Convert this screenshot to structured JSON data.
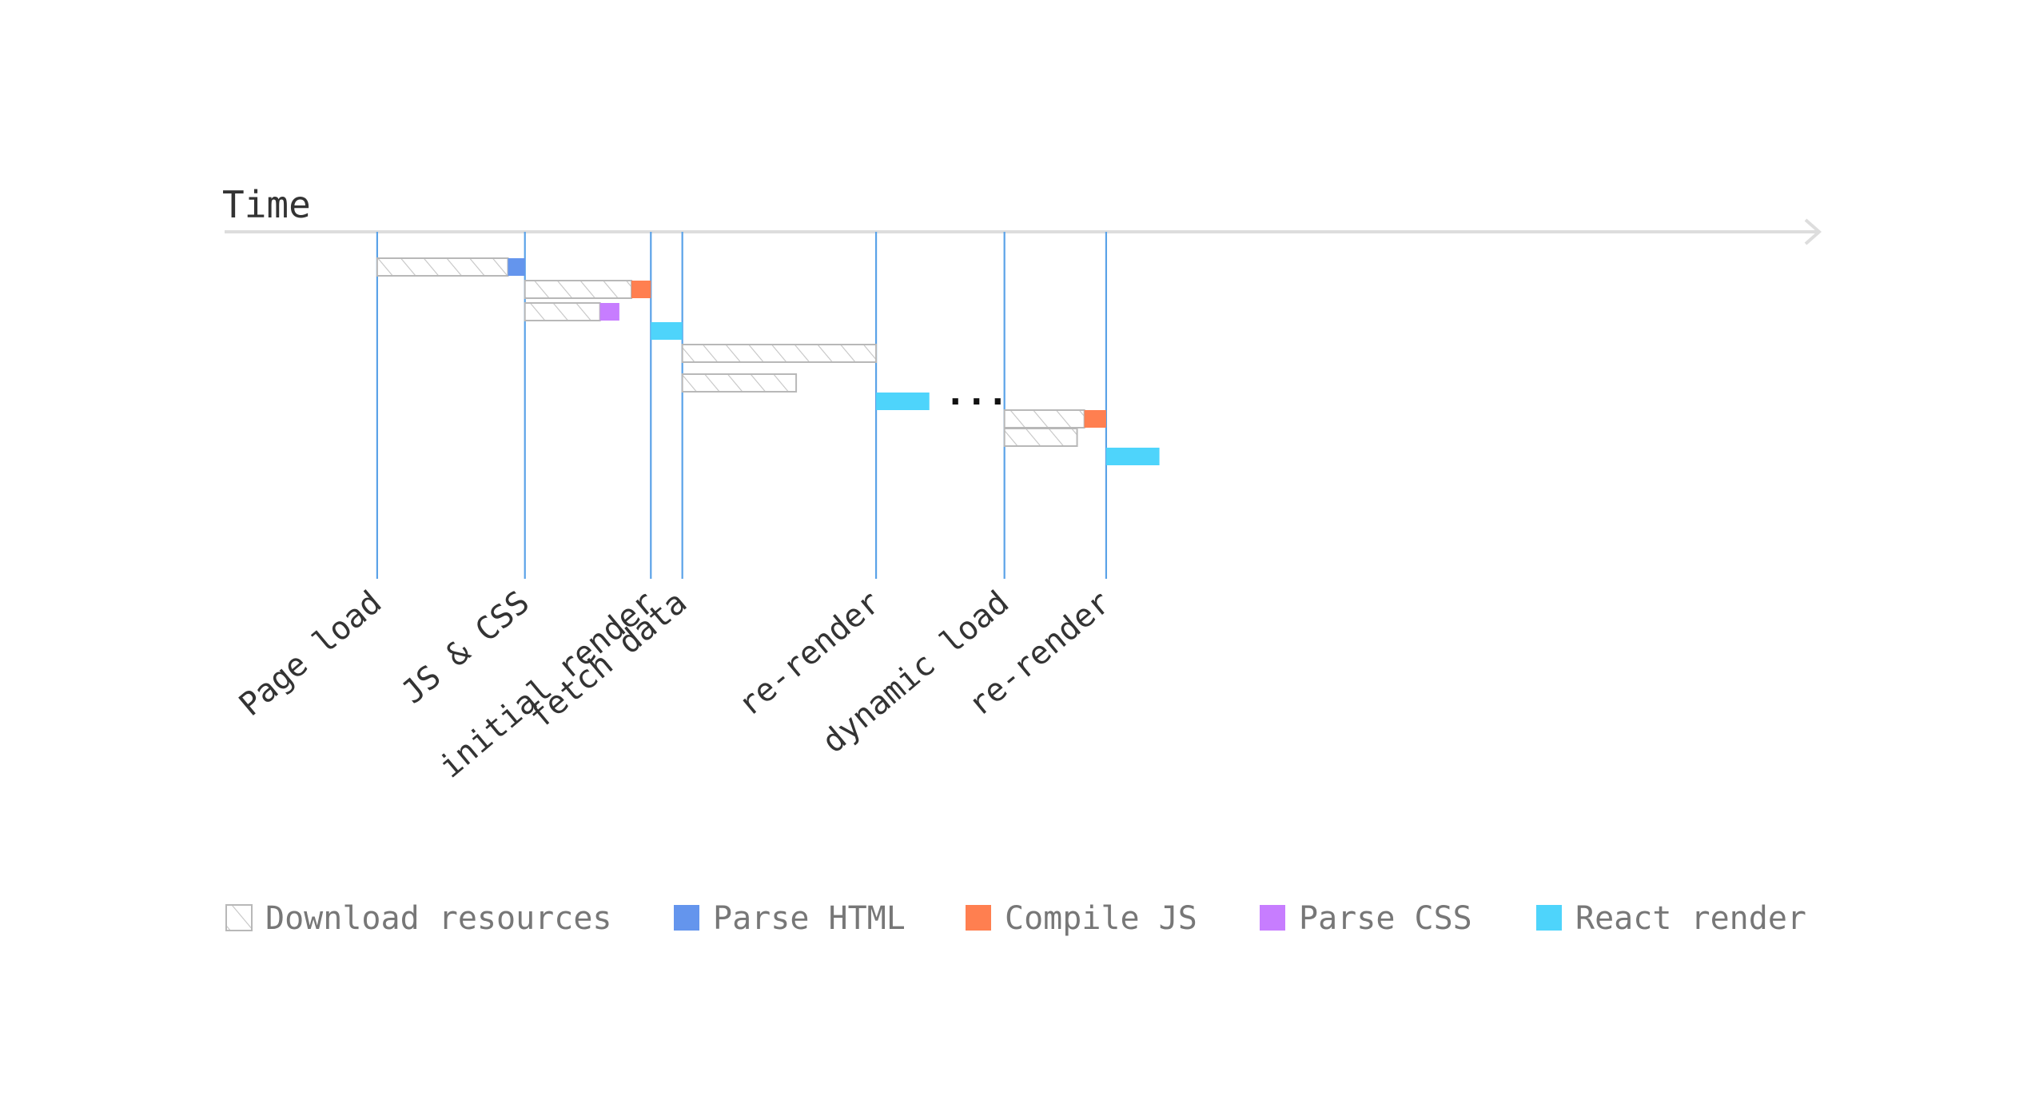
{
  "title": "Time",
  "ellipsis": "...",
  "colors": {
    "download_stroke": "#b8b8b8",
    "download_hatch": "#c4c4c4",
    "parse_html": "#6495ed",
    "compile_js": "#ff7f50",
    "parse_css": "#c77dff",
    "react_render": "#4ed4fb",
    "event_line": "#5aa2e8",
    "axis": "#dddddd"
  },
  "legend": [
    {
      "key": "download",
      "label": "Download resources"
    },
    {
      "key": "parse_html",
      "label": "Parse HTML"
    },
    {
      "key": "compile_js",
      "label": "Compile JS"
    },
    {
      "key": "parse_css",
      "label": "Parse CSS"
    },
    {
      "key": "react_render",
      "label": "React render"
    }
  ],
  "events": [
    {
      "label": "Page load",
      "t": 6.3
    },
    {
      "label": "JS & CSS",
      "t": 12.4
    },
    {
      "label": "initial render",
      "t": 17.6
    },
    {
      "label": "fetch data",
      "t": 18.9
    },
    {
      "label": "re-render",
      "t": 26.9
    },
    {
      "label": "dynamic load",
      "t": 32.2
    },
    {
      "label": "re-render",
      "t": 36.4
    }
  ],
  "tasks": [
    {
      "type": "download",
      "start": 6.3,
      "end": 11.7,
      "row": 0
    },
    {
      "type": "parse_html",
      "start": 11.7,
      "end": 12.4,
      "row": 0
    },
    {
      "type": "download",
      "start": 12.4,
      "end": 16.8,
      "row": 1
    },
    {
      "type": "compile_js",
      "start": 16.8,
      "end": 17.6,
      "row": 1
    },
    {
      "type": "download",
      "start": 12.4,
      "end": 15.5,
      "row": 2
    },
    {
      "type": "parse_css",
      "start": 15.5,
      "end": 16.3,
      "row": 2
    },
    {
      "type": "react_render",
      "start": 17.6,
      "end": 18.9,
      "row": 3
    },
    {
      "type": "download",
      "start": 18.9,
      "end": 26.9,
      "row": 4
    },
    {
      "type": "download",
      "start": 18.9,
      "end": 23.6,
      "row": 5
    },
    {
      "type": "react_render",
      "start": 26.9,
      "end": 29.1,
      "row": 6
    },
    {
      "type": "download",
      "start": 32.2,
      "end": 35.5,
      "row": 7
    },
    {
      "type": "compile_js",
      "start": 35.5,
      "end": 36.4,
      "row": 7
    },
    {
      "type": "download",
      "start": 32.2,
      "end": 35.2,
      "row": 8
    },
    {
      "type": "react_render",
      "start": 36.4,
      "end": 38.6,
      "row": 9
    }
  ]
}
